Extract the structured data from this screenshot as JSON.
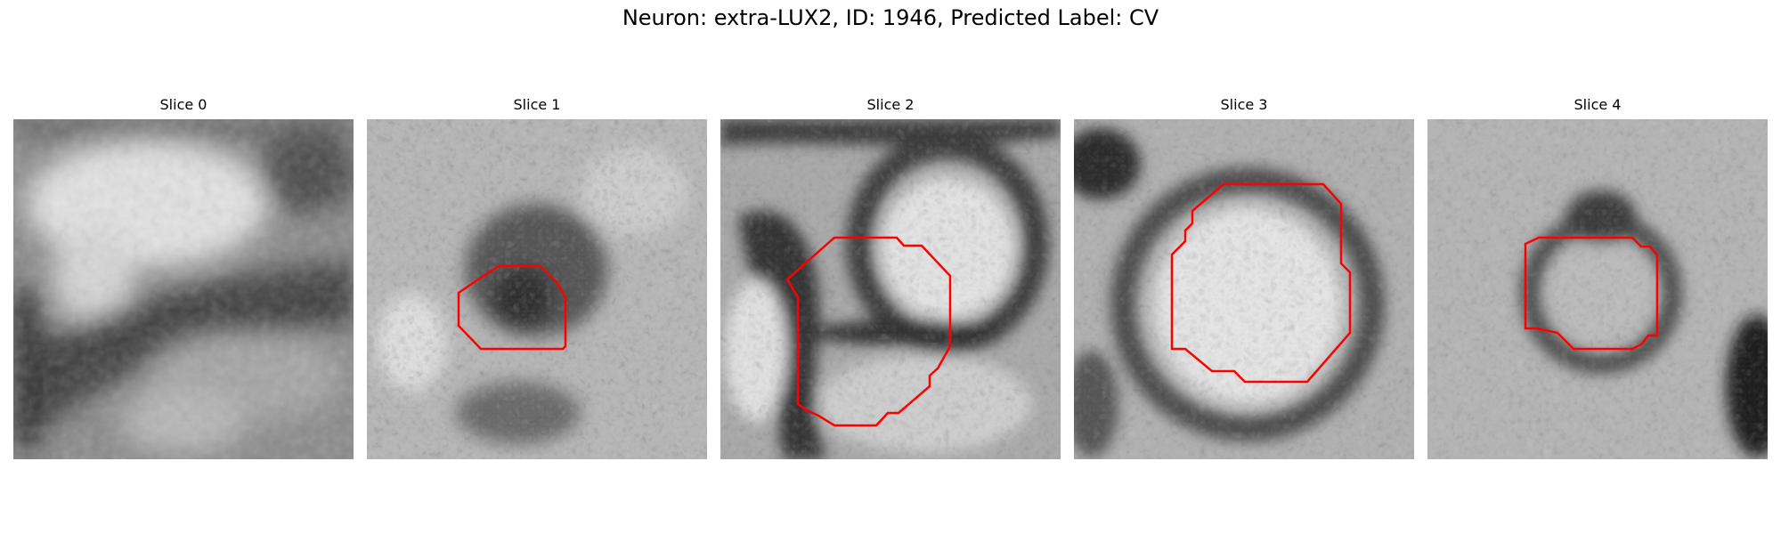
{
  "figure": {
    "title": "Neuron: extra-LUX2, ID: 1946, Predicted Label: CV"
  },
  "panels": [
    {
      "title": "Slice 0",
      "has_contour": false,
      "contour_color": "#ff0000"
    },
    {
      "title": "Slice 1",
      "has_contour": true,
      "contour_color": "#ff0000"
    },
    {
      "title": "Slice 2",
      "has_contour": true,
      "contour_color": "#ff0000"
    },
    {
      "title": "Slice 3",
      "has_contour": true,
      "contour_color": "#ff0000"
    },
    {
      "title": "Slice 4",
      "has_contour": true,
      "contour_color": "#ff0000"
    }
  ],
  "colormap": "gray"
}
